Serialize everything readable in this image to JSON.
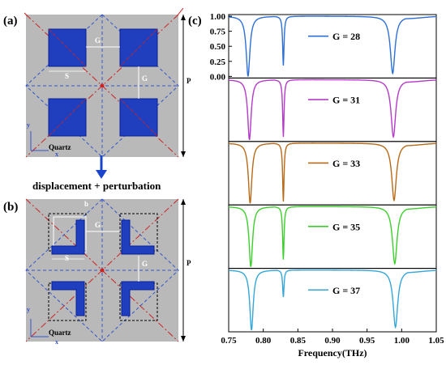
{
  "figure": {
    "panel_a_label": "(a)",
    "panel_b_label": "(b)",
    "panel_c_label": "(c)",
    "transition_text": "displacement + perturbation",
    "quartz_label": "Quartz",
    "period_label": "P",
    "axis_x_label": "x",
    "axis_y_label": "y",
    "gap_label": "G",
    "size_label": "S",
    "offset_label": "b",
    "colors": {
      "substrate": "#b9b9b9",
      "metal": "#1f3fbf",
      "metal_dark": "#0a1f99",
      "red_dash": "#cc2222",
      "blue_dash": "#3355cc",
      "arrow": "#1a44cc"
    }
  },
  "chart_data": {
    "type": "line",
    "xlabel": "Frequency(THz)",
    "xlim": [
      0.75,
      1.05
    ],
    "x_ticks": [
      "0.75",
      "0.80",
      "0.85",
      "0.90",
      "0.95",
      "1.00",
      "1.05"
    ],
    "y_ticks_top_panel": [
      "1.00",
      "0.75",
      "0.50",
      "0.25",
      "0.00"
    ],
    "ylim": [
      0,
      1
    ],
    "series": [
      {
        "name": "G = 28",
        "color": "#2d6fd6",
        "resonances": [
          {
            "f": 0.778,
            "depth": 1.0,
            "w": 0.0032
          },
          {
            "f": 0.829,
            "depth": 0.82,
            "w": 0.0012
          },
          {
            "f": 0.987,
            "depth": 0.95,
            "w": 0.004
          }
        ]
      },
      {
        "name": "G = 31",
        "color": "#b43ac8",
        "resonances": [
          {
            "f": 0.78,
            "depth": 1.0,
            "w": 0.003
          },
          {
            "f": 0.829,
            "depth": 0.95,
            "w": 0.0012
          },
          {
            "f": 0.988,
            "depth": 0.95,
            "w": 0.004
          }
        ]
      },
      {
        "name": "G = 33",
        "color": "#b86a18",
        "resonances": [
          {
            "f": 0.781,
            "depth": 1.0,
            "w": 0.003
          },
          {
            "f": 0.829,
            "depth": 0.97,
            "w": 0.0012
          },
          {
            "f": 0.989,
            "depth": 0.95,
            "w": 0.004
          }
        ]
      },
      {
        "name": "G = 35",
        "color": "#3ccf2c",
        "resonances": [
          {
            "f": 0.782,
            "depth": 1.0,
            "w": 0.003
          },
          {
            "f": 0.829,
            "depth": 0.88,
            "w": 0.0012
          },
          {
            "f": 0.99,
            "depth": 0.95,
            "w": 0.004
          }
        ]
      },
      {
        "name": "G = 37",
        "color": "#34a6d8",
        "resonances": [
          {
            "f": 0.783,
            "depth": 1.0,
            "w": 0.003
          },
          {
            "f": 0.829,
            "depth": 0.45,
            "w": 0.0012
          },
          {
            "f": 0.991,
            "depth": 0.95,
            "w": 0.004
          }
        ]
      }
    ]
  }
}
